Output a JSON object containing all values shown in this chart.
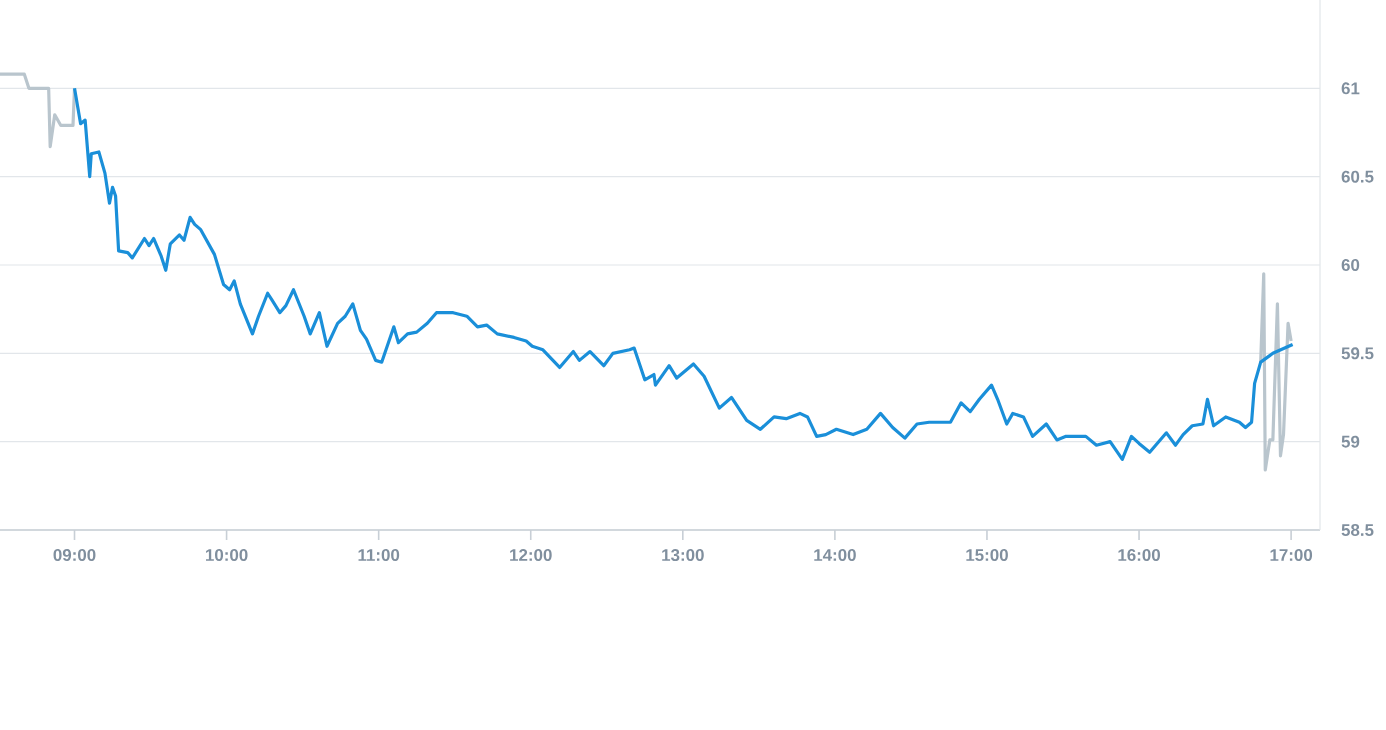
{
  "chart_data": {
    "type": "line",
    "xlim": [
      8.51,
      17.19
    ],
    "ylim": [
      58.5,
      61.5
    ],
    "xticks": [
      {
        "value": 9,
        "label": "09:00"
      },
      {
        "value": 10,
        "label": "10:00"
      },
      {
        "value": 11,
        "label": "11:00"
      },
      {
        "value": 12,
        "label": "12:00"
      },
      {
        "value": 13,
        "label": "13:00"
      },
      {
        "value": 14,
        "label": "14:00"
      },
      {
        "value": 15,
        "label": "15:00"
      },
      {
        "value": 16,
        "label": "16:00"
      },
      {
        "value": 17,
        "label": "17:00"
      }
    ],
    "yticks": [
      58.5,
      59,
      59.5,
      60,
      60.5,
      61
    ],
    "grid": "y",
    "series": [
      {
        "color": "#b9c5cd",
        "x": [
          8.51,
          8.67,
          8.7,
          8.83,
          8.84,
          8.87,
          8.91,
          8.99,
          9.0
        ],
        "values": [
          61.08,
          61.08,
          61.0,
          61.0,
          60.67,
          60.85,
          60.79,
          60.79,
          61.0
        ]
      },
      {
        "color": "#b9c5cd",
        "x": [
          16.8,
          16.82,
          16.83,
          16.86,
          16.88,
          16.91,
          16.93,
          16.95,
          16.98,
          17.0
        ],
        "values": [
          59.45,
          59.95,
          58.84,
          59.01,
          59.01,
          59.78,
          58.92,
          59.04,
          59.67,
          59.57
        ]
      },
      {
        "color": "#1a8fd9",
        "x": [
          9.0,
          9.04,
          9.07,
          9.1,
          9.11,
          9.16,
          9.2,
          9.23,
          9.25,
          9.27,
          9.29,
          9.35,
          9.38,
          9.46,
          9.49,
          9.52,
          9.57,
          9.6,
          9.63,
          9.69,
          9.72,
          9.76,
          9.79,
          9.83,
          9.92,
          9.98,
          10.02,
          10.05,
          10.09,
          10.17,
          10.21,
          10.27,
          10.3,
          10.35,
          10.39,
          10.44,
          10.51,
          10.55,
          10.61,
          10.66,
          10.73,
          10.78,
          10.83,
          10.88,
          10.92,
          10.98,
          11.02,
          11.1,
          11.13,
          11.19,
          11.25,
          11.32,
          11.38,
          11.49,
          11.58,
          11.65,
          11.71,
          11.78,
          11.89,
          11.97,
          12.01,
          12.08,
          12.19,
          12.28,
          12.32,
          12.39,
          12.48,
          12.54,
          12.65,
          12.68,
          12.75,
          12.81,
          12.82,
          12.91,
          12.96,
          13.07,
          13.14,
          13.24,
          13.32,
          13.42,
          13.51,
          13.6,
          13.68,
          13.77,
          13.82,
          13.88,
          13.94,
          14.01,
          14.12,
          14.21,
          14.3,
          14.38,
          14.46,
          14.54,
          14.62,
          14.76,
          14.83,
          14.89,
          14.95,
          15.03,
          15.07,
          15.13,
          15.17,
          15.24,
          15.3,
          15.39,
          15.46,
          15.52,
          15.65,
          15.72,
          15.81,
          15.89,
          15.95,
          16.0,
          16.07,
          16.18,
          16.24,
          16.29,
          16.35,
          16.42,
          16.45,
          16.49,
          16.57,
          16.66,
          16.7,
          16.74,
          16.76,
          16.8,
          16.88,
          17.01
        ],
        "values": [
          61.0,
          60.8,
          60.82,
          60.5,
          60.63,
          60.64,
          60.52,
          60.35,
          60.44,
          60.39,
          60.08,
          60.07,
          60.04,
          60.15,
          60.11,
          60.15,
          60.05,
          59.97,
          60.12,
          60.17,
          60.14,
          60.27,
          60.23,
          60.2,
          60.06,
          59.89,
          59.86,
          59.91,
          59.78,
          59.61,
          59.71,
          59.84,
          59.8,
          59.73,
          59.77,
          59.86,
          59.71,
          59.61,
          59.73,
          59.54,
          59.67,
          59.71,
          59.78,
          59.63,
          59.58,
          59.46,
          59.45,
          59.65,
          59.56,
          59.61,
          59.62,
          59.67,
          59.73,
          59.73,
          59.71,
          59.65,
          59.66,
          59.61,
          59.59,
          59.57,
          59.54,
          59.52,
          59.42,
          59.51,
          59.46,
          59.51,
          59.43,
          59.5,
          59.52,
          59.53,
          59.35,
          59.38,
          59.32,
          59.43,
          59.36,
          59.44,
          59.37,
          59.19,
          59.25,
          59.12,
          59.07,
          59.14,
          59.13,
          59.16,
          59.14,
          59.03,
          59.04,
          59.07,
          59.04,
          59.07,
          59.16,
          59.08,
          59.02,
          59.1,
          59.11,
          59.11,
          59.22,
          59.17,
          59.24,
          59.32,
          59.24,
          59.1,
          59.16,
          59.14,
          59.03,
          59.1,
          59.01,
          59.03,
          59.03,
          58.98,
          59.0,
          58.9,
          59.03,
          58.99,
          58.94,
          59.05,
          58.98,
          59.04,
          59.09,
          59.1,
          59.24,
          59.09,
          59.14,
          59.11,
          59.08,
          59.11,
          59.33,
          59.45,
          59.5,
          59.55
        ]
      }
    ]
  }
}
